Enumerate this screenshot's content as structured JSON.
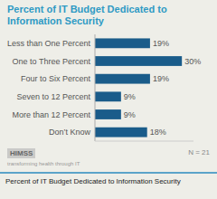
{
  "chart_data": {
    "type": "bar",
    "orientation": "horizontal",
    "title": "Percent of IT Budget Dedicated to Information Security",
    "categories": [
      "Less than One Percent",
      "One to Three Percent",
      "Four to Six Percent",
      "Seven to 12 Percent",
      "More than 12 Percent",
      "Don’t Know"
    ],
    "values": [
      19,
      30,
      19,
      9,
      9,
      18
    ],
    "value_labels": [
      "19%",
      "30%",
      "19%",
      "9%",
      "9%",
      "18%"
    ],
    "color": "#1A5C8A",
    "xlim": [
      0,
      34
    ],
    "data_labels": true,
    "tick_labels": "y",
    "grid": false,
    "annotations": [
      "HIMSS",
      "transforming health through IT",
      "N = 21",
      "Percent of IT Budget Dedicated to Information Security"
    ]
  }
}
